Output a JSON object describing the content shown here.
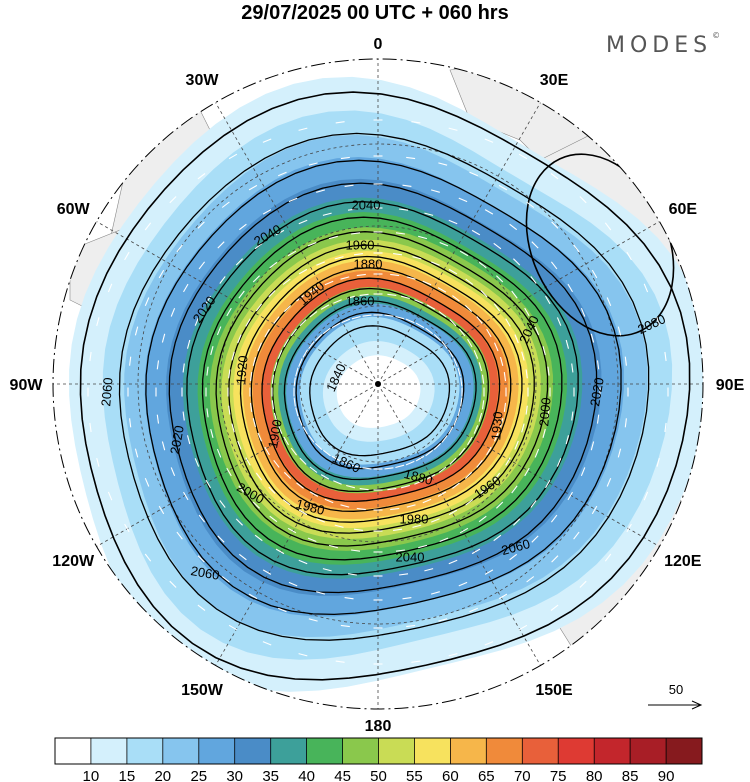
{
  "title": "29/07/2025  00 UTC  + 060 hrs",
  "brand": "MODES",
  "brand_mark": "©",
  "longitude_labels": [
    {
      "text": "0",
      "lon": 0
    },
    {
      "text": "30E",
      "lon": 30
    },
    {
      "text": "60E",
      "lon": 60
    },
    {
      "text": "90E",
      "lon": 90
    },
    {
      "text": "120E",
      "lon": 120
    },
    {
      "text": "150E",
      "lon": 150
    },
    {
      "text": "180",
      "lon": 180
    },
    {
      "text": "150W",
      "lon": -150
    },
    {
      "text": "120W",
      "lon": -120
    },
    {
      "text": "90W",
      "lon": -90
    },
    {
      "text": "60W",
      "lon": -60
    },
    {
      "text": "30W",
      "lon": -30
    }
  ],
  "contour_labels": [
    "1840",
    "1860",
    "1880",
    "1900",
    "1920",
    "1940",
    "1960",
    "1980",
    "2000",
    "2020",
    "2040",
    "2060",
    "2080"
  ],
  "wind_scale": {
    "label": "50"
  },
  "colorbar": {
    "ticks": [
      "10",
      "15",
      "20",
      "25",
      "30",
      "35",
      "40",
      "45",
      "50",
      "55",
      "60",
      "65",
      "70",
      "75",
      "80",
      "85",
      "90"
    ],
    "colors": [
      "#ffffff",
      "#d4f0fc",
      "#a9def7",
      "#86c5ee",
      "#61a6de",
      "#4a8cc7",
      "#3da09a",
      "#48b45a",
      "#8ac84c",
      "#c9dc55",
      "#f7e25e",
      "#f6b64a",
      "#f08a3a",
      "#e8603a",
      "#de3a33",
      "#c3262c",
      "#a81e26",
      "#861a1e"
    ]
  }
}
